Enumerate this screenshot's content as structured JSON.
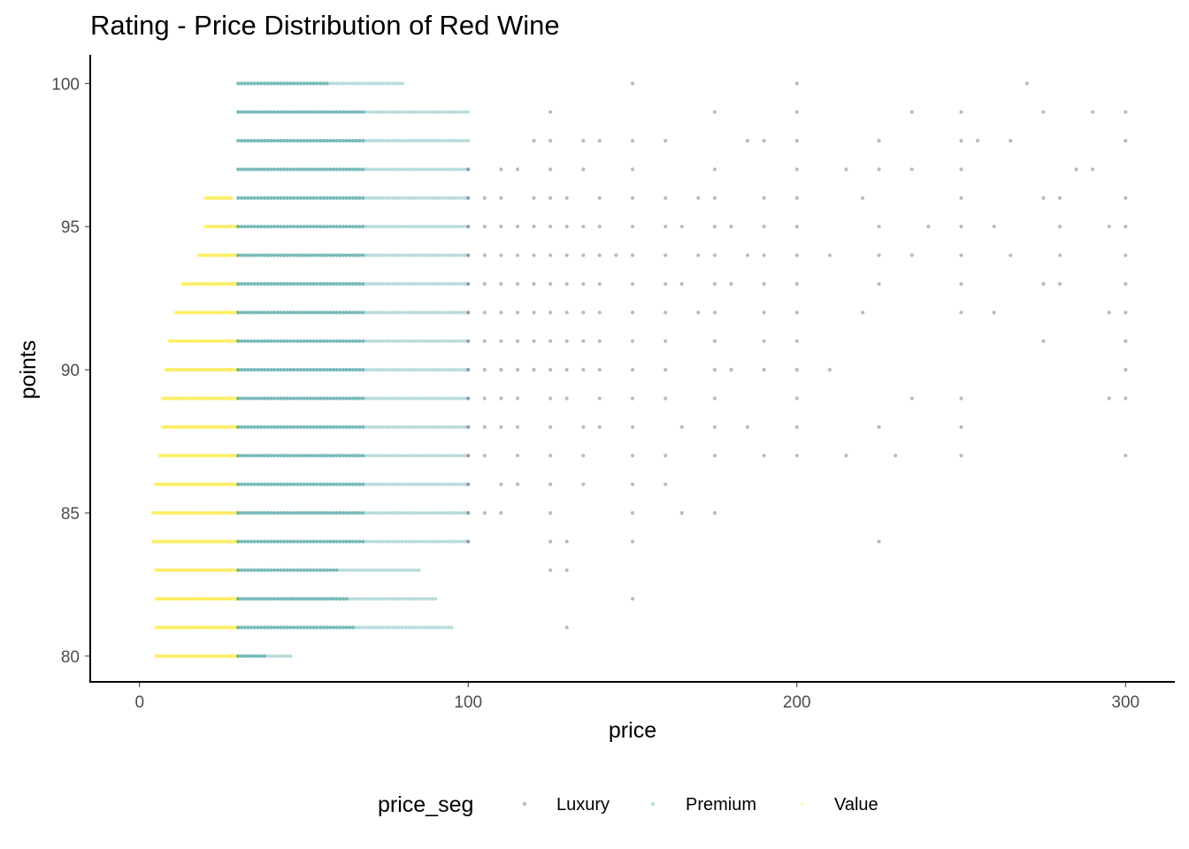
{
  "chart_data": {
    "type": "scatter",
    "title": "Rating - Price Distribution of Red Wine",
    "xlabel": "price",
    "ylabel": "points",
    "xlim": [
      -15,
      315
    ],
    "ylim": [
      79.1,
      101.0
    ],
    "x_ticks": [
      0,
      100,
      200,
      300
    ],
    "y_ticks": [
      80,
      85,
      90,
      95,
      100
    ],
    "grid": false,
    "legend": {
      "title": "price_seg",
      "placement": "bottom"
    },
    "series": [
      {
        "name": "Luxury",
        "color": "#440154",
        "price_range": [
          100,
          300
        ]
      },
      {
        "name": "Premium",
        "color": "#21908C",
        "price_range": [
          30,
          100
        ]
      },
      {
        "name": "Value",
        "color": "#FDE725",
        "price_range": [
          4,
          30
        ]
      }
    ],
    "value_rows": [
      {
        "points": 80,
        "min_price": 5,
        "max_price": 30
      },
      {
        "points": 81,
        "min_price": 5,
        "max_price": 30
      },
      {
        "points": 82,
        "min_price": 5,
        "max_price": 30
      },
      {
        "points": 83,
        "min_price": 5,
        "max_price": 30
      },
      {
        "points": 84,
        "min_price": 4,
        "max_price": 30
      },
      {
        "points": 85,
        "min_price": 4,
        "max_price": 30
      },
      {
        "points": 86,
        "min_price": 5,
        "max_price": 30
      },
      {
        "points": 87,
        "min_price": 6,
        "max_price": 30
      },
      {
        "points": 88,
        "min_price": 7,
        "max_price": 30
      },
      {
        "points": 89,
        "min_price": 7,
        "max_price": 30
      },
      {
        "points": 90,
        "min_price": 8,
        "max_price": 30
      },
      {
        "points": 91,
        "min_price": 9,
        "max_price": 30
      },
      {
        "points": 92,
        "min_price": 11,
        "max_price": 30
      },
      {
        "points": 93,
        "min_price": 13,
        "max_price": 30
      },
      {
        "points": 94,
        "min_price": 18,
        "max_price": 30
      },
      {
        "points": 95,
        "min_price": 20,
        "max_price": 30
      },
      {
        "points": 96,
        "min_price": 20,
        "max_price": 28
      }
    ],
    "premium_rows": [
      {
        "points": 80,
        "max_price": 46
      },
      {
        "points": 81,
        "max_price": 95
      },
      {
        "points": 82,
        "max_price": 90
      },
      {
        "points": 83,
        "max_price": 85
      },
      {
        "points": 84,
        "max_price": 100
      },
      {
        "points": 85,
        "max_price": 100
      },
      {
        "points": 86,
        "max_price": 100
      },
      {
        "points": 87,
        "max_price": 100
      },
      {
        "points": 88,
        "max_price": 100
      },
      {
        "points": 89,
        "max_price": 100
      },
      {
        "points": 90,
        "max_price": 100
      },
      {
        "points": 91,
        "max_price": 100
      },
      {
        "points": 92,
        "max_price": 100
      },
      {
        "points": 93,
        "max_price": 100
      },
      {
        "points": 94,
        "max_price": 100
      },
      {
        "points": 95,
        "max_price": 100
      },
      {
        "points": 96,
        "max_price": 100
      },
      {
        "points": 97,
        "max_price": 100
      },
      {
        "points": 98,
        "max_price": 100
      },
      {
        "points": 99,
        "max_price": 100
      },
      {
        "points": 100,
        "max_price": 80
      }
    ],
    "luxury_points": [
      [
        125,
        99
      ],
      [
        150,
        100
      ],
      [
        175,
        99
      ],
      [
        200,
        100
      ],
      [
        200,
        99
      ],
      [
        235,
        99
      ],
      [
        250,
        99
      ],
      [
        270,
        100
      ],
      [
        275,
        99
      ],
      [
        290,
        99
      ],
      [
        300,
        99
      ],
      [
        120,
        98
      ],
      [
        125,
        98
      ],
      [
        135,
        98
      ],
      [
        140,
        98
      ],
      [
        150,
        98
      ],
      [
        160,
        98
      ],
      [
        185,
        98
      ],
      [
        190,
        98
      ],
      [
        200,
        98
      ],
      [
        225,
        98
      ],
      [
        250,
        98
      ],
      [
        255,
        98
      ],
      [
        265,
        98
      ],
      [
        300,
        98
      ],
      [
        100,
        97
      ],
      [
        110,
        97
      ],
      [
        115,
        97
      ],
      [
        125,
        97
      ],
      [
        135,
        97
      ],
      [
        150,
        97
      ],
      [
        175,
        97
      ],
      [
        200,
        97
      ],
      [
        215,
        97
      ],
      [
        225,
        97
      ],
      [
        235,
        97
      ],
      [
        250,
        97
      ],
      [
        285,
        97
      ],
      [
        290,
        97
      ],
      [
        100,
        96
      ],
      [
        105,
        96
      ],
      [
        110,
        96
      ],
      [
        120,
        96
      ],
      [
        125,
        96
      ],
      [
        130,
        96
      ],
      [
        140,
        96
      ],
      [
        150,
        96
      ],
      [
        160,
        96
      ],
      [
        170,
        96
      ],
      [
        175,
        96
      ],
      [
        190,
        96
      ],
      [
        200,
        96
      ],
      [
        220,
        96
      ],
      [
        250,
        96
      ],
      [
        275,
        96
      ],
      [
        280,
        96
      ],
      [
        300,
        96
      ],
      [
        100,
        95
      ],
      [
        105,
        95
      ],
      [
        110,
        95
      ],
      [
        115,
        95
      ],
      [
        120,
        95
      ],
      [
        125,
        95
      ],
      [
        130,
        95
      ],
      [
        135,
        95
      ],
      [
        140,
        95
      ],
      [
        150,
        95
      ],
      [
        160,
        95
      ],
      [
        165,
        95
      ],
      [
        175,
        95
      ],
      [
        180,
        95
      ],
      [
        190,
        95
      ],
      [
        200,
        95
      ],
      [
        225,
        95
      ],
      [
        240,
        95
      ],
      [
        250,
        95
      ],
      [
        260,
        95
      ],
      [
        280,
        95
      ],
      [
        295,
        95
      ],
      [
        300,
        95
      ],
      [
        100,
        94
      ],
      [
        105,
        94
      ],
      [
        110,
        94
      ],
      [
        115,
        94
      ],
      [
        120,
        94
      ],
      [
        125,
        94
      ],
      [
        130,
        94
      ],
      [
        135,
        94
      ],
      [
        140,
        94
      ],
      [
        145,
        94
      ],
      [
        150,
        94
      ],
      [
        160,
        94
      ],
      [
        170,
        94
      ],
      [
        175,
        94
      ],
      [
        185,
        94
      ],
      [
        190,
        94
      ],
      [
        200,
        94
      ],
      [
        210,
        94
      ],
      [
        225,
        94
      ],
      [
        235,
        94
      ],
      [
        250,
        94
      ],
      [
        265,
        94
      ],
      [
        280,
        94
      ],
      [
        300,
        94
      ],
      [
        100,
        93
      ],
      [
        105,
        93
      ],
      [
        110,
        93
      ],
      [
        115,
        93
      ],
      [
        120,
        93
      ],
      [
        125,
        93
      ],
      [
        130,
        93
      ],
      [
        135,
        93
      ],
      [
        140,
        93
      ],
      [
        150,
        93
      ],
      [
        160,
        93
      ],
      [
        165,
        93
      ],
      [
        175,
        93
      ],
      [
        180,
        93
      ],
      [
        190,
        93
      ],
      [
        200,
        93
      ],
      [
        225,
        93
      ],
      [
        250,
        93
      ],
      [
        275,
        93
      ],
      [
        280,
        93
      ],
      [
        300,
        93
      ],
      [
        100,
        92
      ],
      [
        105,
        92
      ],
      [
        110,
        92
      ],
      [
        115,
        92
      ],
      [
        120,
        92
      ],
      [
        125,
        92
      ],
      [
        130,
        92
      ],
      [
        135,
        92
      ],
      [
        140,
        92
      ],
      [
        150,
        92
      ],
      [
        160,
        92
      ],
      [
        170,
        92
      ],
      [
        175,
        92
      ],
      [
        190,
        92
      ],
      [
        200,
        92
      ],
      [
        220,
        92
      ],
      [
        250,
        92
      ],
      [
        260,
        92
      ],
      [
        295,
        92
      ],
      [
        300,
        92
      ],
      [
        100,
        91
      ],
      [
        105,
        91
      ],
      [
        110,
        91
      ],
      [
        115,
        91
      ],
      [
        120,
        91
      ],
      [
        125,
        91
      ],
      [
        130,
        91
      ],
      [
        135,
        91
      ],
      [
        140,
        91
      ],
      [
        150,
        91
      ],
      [
        160,
        91
      ],
      [
        175,
        91
      ],
      [
        190,
        91
      ],
      [
        200,
        91
      ],
      [
        275,
        91
      ],
      [
        300,
        91
      ],
      [
        100,
        90
      ],
      [
        105,
        90
      ],
      [
        110,
        90
      ],
      [
        115,
        90
      ],
      [
        120,
        90
      ],
      [
        125,
        90
      ],
      [
        130,
        90
      ],
      [
        135,
        90
      ],
      [
        140,
        90
      ],
      [
        150,
        90
      ],
      [
        160,
        90
      ],
      [
        175,
        90
      ],
      [
        180,
        90
      ],
      [
        190,
        90
      ],
      [
        200,
        90
      ],
      [
        210,
        90
      ],
      [
        300,
        90
      ],
      [
        100,
        89
      ],
      [
        105,
        89
      ],
      [
        110,
        89
      ],
      [
        115,
        89
      ],
      [
        125,
        89
      ],
      [
        130,
        89
      ],
      [
        140,
        89
      ],
      [
        150,
        89
      ],
      [
        160,
        89
      ],
      [
        175,
        89
      ],
      [
        200,
        89
      ],
      [
        235,
        89
      ],
      [
        250,
        89
      ],
      [
        295,
        89
      ],
      [
        300,
        89
      ],
      [
        100,
        88
      ],
      [
        105,
        88
      ],
      [
        110,
        88
      ],
      [
        115,
        88
      ],
      [
        125,
        88
      ],
      [
        135,
        88
      ],
      [
        140,
        88
      ],
      [
        150,
        88
      ],
      [
        165,
        88
      ],
      [
        175,
        88
      ],
      [
        185,
        88
      ],
      [
        200,
        88
      ],
      [
        225,
        88
      ],
      [
        250,
        88
      ],
      [
        100,
        87
      ],
      [
        105,
        87
      ],
      [
        115,
        87
      ],
      [
        125,
        87
      ],
      [
        135,
        87
      ],
      [
        150,
        87
      ],
      [
        160,
        87
      ],
      [
        175,
        87
      ],
      [
        190,
        87
      ],
      [
        200,
        87
      ],
      [
        215,
        87
      ],
      [
        230,
        87
      ],
      [
        250,
        87
      ],
      [
        300,
        87
      ],
      [
        100,
        86
      ],
      [
        110,
        86
      ],
      [
        115,
        86
      ],
      [
        125,
        86
      ],
      [
        135,
        86
      ],
      [
        150,
        86
      ],
      [
        160,
        86
      ],
      [
        100,
        85
      ],
      [
        105,
        85
      ],
      [
        110,
        85
      ],
      [
        125,
        85
      ],
      [
        150,
        85
      ],
      [
        165,
        85
      ],
      [
        175,
        85
      ],
      [
        100,
        84
      ],
      [
        125,
        84
      ],
      [
        130,
        84
      ],
      [
        150,
        84
      ],
      [
        225,
        84
      ],
      [
        125,
        83
      ],
      [
        130,
        83
      ],
      [
        150,
        82
      ],
      [
        130,
        81
      ]
    ]
  }
}
